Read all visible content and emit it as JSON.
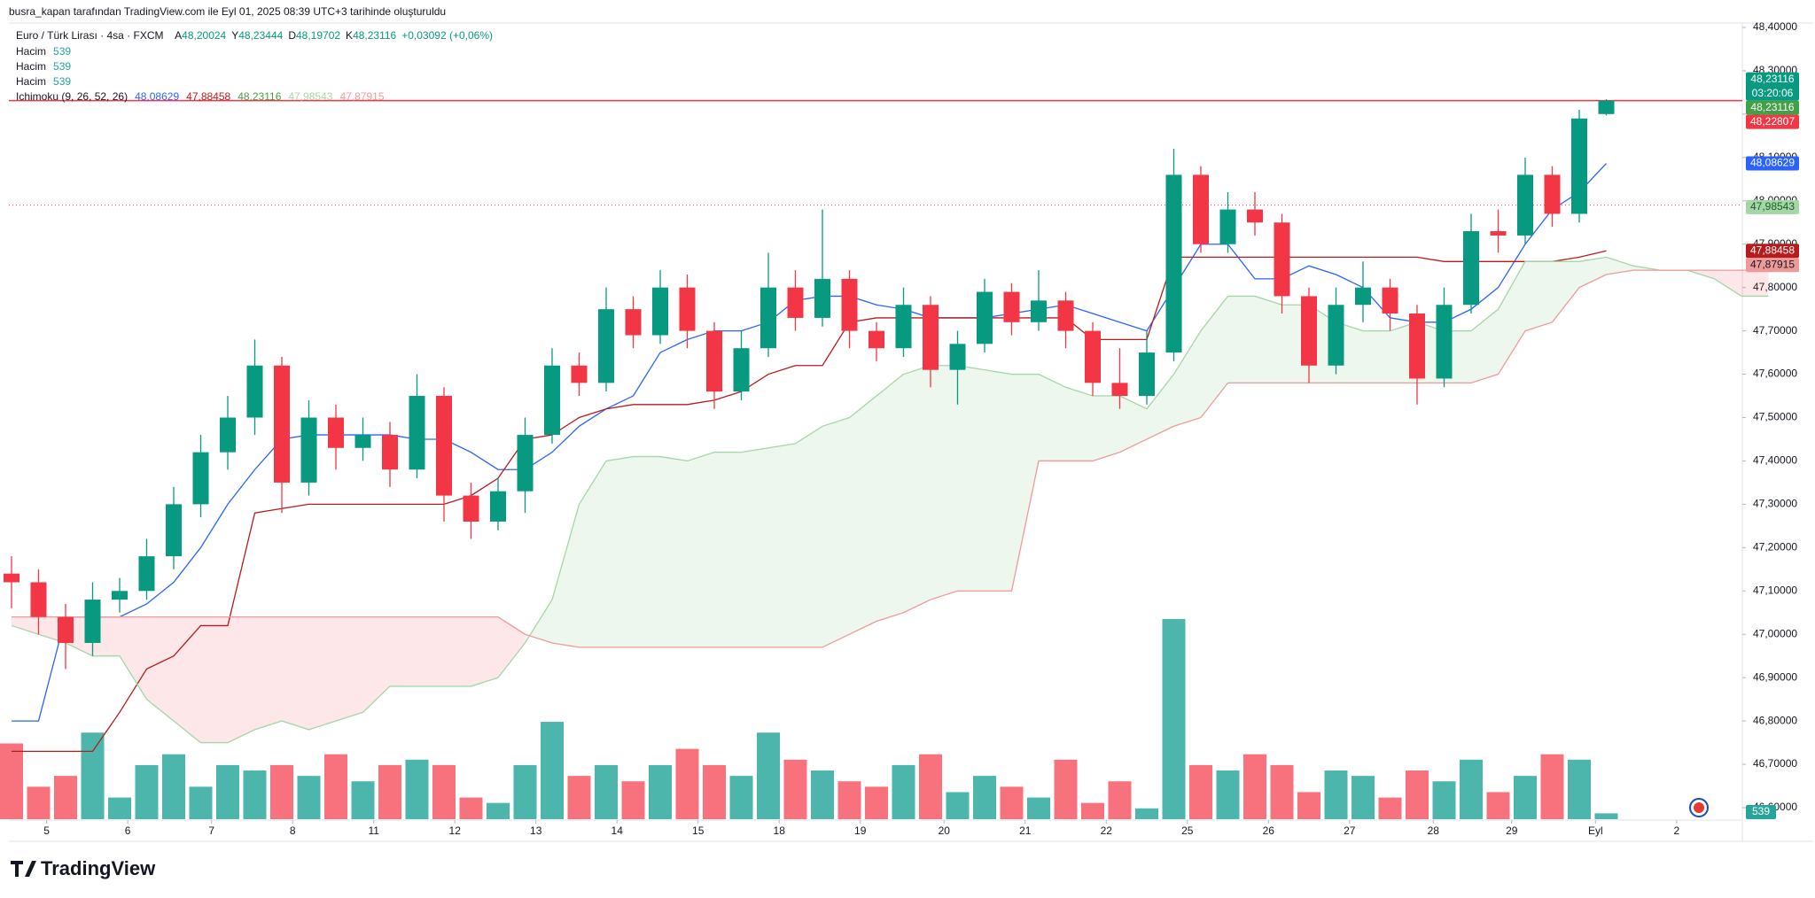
{
  "header": {
    "caption": "busra_kapan tarafından TradingView.com ile Eyl 01, 2025 08:39 UTC+3 tarihinde oluşturuldu",
    "brand": "TradingView"
  },
  "legend": {
    "symbol": "Euro / Türk Lirası · 4sa · FXCM",
    "ohlc": [
      {
        "label": "A",
        "value": "48,20024"
      },
      {
        "label": "Y",
        "value": "48,23444"
      },
      {
        "label": "D",
        "value": "48,19702"
      },
      {
        "label": "K",
        "value": "48,23116"
      }
    ],
    "change": "+0,03092 (+0,06%)",
    "volume_rows": [
      {
        "label": "Hacim",
        "value": "539"
      },
      {
        "label": "Hacim",
        "value": "539"
      },
      {
        "label": "Hacim",
        "value": "539"
      }
    ],
    "ichimoku": {
      "name": "Ichimoku (9, 26, 52, 26)",
      "values": [
        {
          "text": "48,08629",
          "color": "#2962ff"
        },
        {
          "text": "47,88458",
          "color": "#b71c1c"
        },
        {
          "text": "48,23116",
          "color": "#43a047"
        },
        {
          "text": "47,98543",
          "color": "#a5d6a7"
        },
        {
          "text": "47,87915",
          "color": "#ef9a9a"
        }
      ]
    }
  },
  "price_labels": [
    {
      "text": "48,23116",
      "sub": "03:20:06",
      "value": 48.23116,
      "color": "#089981",
      "text_color": "#ffffff"
    },
    {
      "text": "48,23116",
      "value": 48.23116,
      "color": "#43a047",
      "text_color": "#ffffff"
    },
    {
      "text": "48,22807",
      "value": 48.22807,
      "color": "#f23645",
      "text_color": "#ffffff"
    },
    {
      "text": "48,08629",
      "value": 48.08629,
      "color": "#2962ff",
      "text_color": "#ffffff"
    },
    {
      "text": "47,98543",
      "value": 47.98543,
      "color": "#a5d6a7",
      "text_color": "#1b5e20"
    },
    {
      "text": "47,88458",
      "value": 47.88458,
      "color": "#b71c1c",
      "text_color": "#ffffff"
    },
    {
      "text": "47,87915",
      "value": 47.87915,
      "color": "#ef9a9a",
      "text_color": "#131722"
    }
  ],
  "volume_badge": {
    "text": "539",
    "color": "#26a69a"
  },
  "chart_data": {
    "type": "candlestick",
    "up_color": "#089981",
    "down_color": "#f23645",
    "volume_up_color": "#4db6ac",
    "volume_down_color": "#f7727c",
    "ylim": [
      46.6,
      48.4
    ],
    "yticks": [
      {
        "value": 46.6,
        "label": "46,60000"
      },
      {
        "value": 46.7,
        "label": "46,70000"
      },
      {
        "value": 46.8,
        "label": "46,80000"
      },
      {
        "value": 46.9,
        "label": "46,90000"
      },
      {
        "value": 47.0,
        "label": "47,00000"
      },
      {
        "value": 47.1,
        "label": "47,10000"
      },
      {
        "value": 47.2,
        "label": "47,20000"
      },
      {
        "value": 47.3,
        "label": "47,30000"
      },
      {
        "value": 47.4,
        "label": "47,40000"
      },
      {
        "value": 47.5,
        "label": "47,50000"
      },
      {
        "value": 47.6,
        "label": "47,60000"
      },
      {
        "value": 47.7,
        "label": "47,70000"
      },
      {
        "value": 47.8,
        "label": "47,80000"
      },
      {
        "value": 47.9,
        "label": "47,90000"
      },
      {
        "value": 48.0,
        "label": "48,00000"
      },
      {
        "value": 48.1,
        "label": "48,10000"
      },
      {
        "value": 48.2,
        "label": "48,20000"
      },
      {
        "value": 48.3,
        "label": "48,30000"
      },
      {
        "value": 48.4,
        "label": "48,40000"
      }
    ],
    "xticks": [
      {
        "value": 1.3,
        "label": "5"
      },
      {
        "value": 4.3,
        "label": "6"
      },
      {
        "value": 7.4,
        "label": "7"
      },
      {
        "value": 10.4,
        "label": "8"
      },
      {
        "value": 13.4,
        "label": "11"
      },
      {
        "value": 16.4,
        "label": "12"
      },
      {
        "value": 19.4,
        "label": "13"
      },
      {
        "value": 22.4,
        "label": "14"
      },
      {
        "value": 25.4,
        "label": "15"
      },
      {
        "value": 28.4,
        "label": "18"
      },
      {
        "value": 31.4,
        "label": "19"
      },
      {
        "value": 34.5,
        "label": "20"
      },
      {
        "value": 37.5,
        "label": "21"
      },
      {
        "value": 40.5,
        "label": "22"
      },
      {
        "value": 43.5,
        "label": "25"
      },
      {
        "value": 46.5,
        "label": "26"
      },
      {
        "value": 49.5,
        "label": "27"
      },
      {
        "value": 52.6,
        "label": "28"
      },
      {
        "value": 55.5,
        "label": "29"
      },
      {
        "value": 58.6,
        "label": "Eyl"
      },
      {
        "value": 61.6,
        "label": "2"
      }
    ],
    "ohlc": [
      [
        47.14,
        47.18,
        47.06,
        47.12
      ],
      [
        47.12,
        47.15,
        47.0,
        47.04
      ],
      [
        47.04,
        47.07,
        46.92,
        46.98
      ],
      [
        46.98,
        47.12,
        46.95,
        47.08
      ],
      [
        47.08,
        47.13,
        47.05,
        47.1
      ],
      [
        47.1,
        47.22,
        47.08,
        47.18
      ],
      [
        47.18,
        47.34,
        47.15,
        47.3
      ],
      [
        47.3,
        47.46,
        47.27,
        47.42
      ],
      [
        47.42,
        47.55,
        47.38,
        47.5
      ],
      [
        47.5,
        47.68,
        47.46,
        47.62
      ],
      [
        47.62,
        47.64,
        47.28,
        47.35
      ],
      [
        47.35,
        47.54,
        47.32,
        47.5
      ],
      [
        47.5,
        47.53,
        47.38,
        47.43
      ],
      [
        47.43,
        47.5,
        47.4,
        47.46
      ],
      [
        47.46,
        47.49,
        47.34,
        47.38
      ],
      [
        47.38,
        47.6,
        47.36,
        47.55
      ],
      [
        47.55,
        47.57,
        47.26,
        47.32
      ],
      [
        47.32,
        47.35,
        47.22,
        47.26
      ],
      [
        47.26,
        47.36,
        47.24,
        47.33
      ],
      [
        47.33,
        47.5,
        47.28,
        47.46
      ],
      [
        47.46,
        47.66,
        47.44,
        47.62
      ],
      [
        47.62,
        47.65,
        47.55,
        47.58
      ],
      [
        47.58,
        47.8,
        47.56,
        47.75
      ],
      [
        47.75,
        47.78,
        47.66,
        47.69
      ],
      [
        47.69,
        47.84,
        47.67,
        47.8
      ],
      [
        47.8,
        47.83,
        47.66,
        47.7
      ],
      [
        47.7,
        47.72,
        47.52,
        47.56
      ],
      [
        47.56,
        47.7,
        47.54,
        47.66
      ],
      [
        47.66,
        47.88,
        47.64,
        47.8
      ],
      [
        47.8,
        47.84,
        47.7,
        47.73
      ],
      [
        47.73,
        47.98,
        47.71,
        47.82
      ],
      [
        47.82,
        47.84,
        47.66,
        47.7
      ],
      [
        47.7,
        47.72,
        47.63,
        47.66
      ],
      [
        47.66,
        47.8,
        47.64,
        47.76
      ],
      [
        47.76,
        47.78,
        47.57,
        47.61
      ],
      [
        47.61,
        47.7,
        47.53,
        47.67
      ],
      [
        47.67,
        47.82,
        47.65,
        47.79
      ],
      [
        47.79,
        47.81,
        47.69,
        47.72
      ],
      [
        47.72,
        47.84,
        47.7,
        47.77
      ],
      [
        47.77,
        47.79,
        47.66,
        47.7
      ],
      [
        47.7,
        47.72,
        47.55,
        47.58
      ],
      [
        47.58,
        47.66,
        47.52,
        47.55
      ],
      [
        47.55,
        47.7,
        47.53,
        47.65
      ],
      [
        47.65,
        48.12,
        47.63,
        48.06
      ],
      [
        48.06,
        48.08,
        47.88,
        47.9
      ],
      [
        47.9,
        48.02,
        47.88,
        47.98
      ],
      [
        47.98,
        48.02,
        47.92,
        47.95
      ],
      [
        47.95,
        47.97,
        47.74,
        47.78
      ],
      [
        47.78,
        47.8,
        47.58,
        47.62
      ],
      [
        47.62,
        47.8,
        47.6,
        47.76
      ],
      [
        47.76,
        47.86,
        47.72,
        47.8
      ],
      [
        47.8,
        47.82,
        47.7,
        47.74
      ],
      [
        47.74,
        47.76,
        47.53,
        47.59
      ],
      [
        47.59,
        47.8,
        47.57,
        47.76
      ],
      [
        47.76,
        47.97,
        47.74,
        47.93
      ],
      [
        47.93,
        47.98,
        47.88,
        47.92
      ],
      [
        47.92,
        48.1,
        47.9,
        48.06
      ],
      [
        48.06,
        48.08,
        47.94,
        47.97
      ],
      [
        47.97,
        48.21,
        47.95,
        48.19
      ],
      [
        48.20024,
        48.23444,
        48.19702,
        48.23116
      ]
    ],
    "volume": [
      7000,
      3000,
      4000,
      8000,
      2000,
      5000,
      6000,
      3000,
      5000,
      4500,
      5000,
      4000,
      6000,
      3500,
      5000,
      5500,
      5000,
      2000,
      1500,
      5000,
      9000,
      4000,
      5000,
      3500,
      5000,
      6500,
      5000,
      4000,
      8000,
      5500,
      4500,
      3500,
      3000,
      5000,
      6000,
      2500,
      4000,
      3000,
      2000,
      5500,
      1500,
      3500,
      1000,
      18500,
      5000,
      4500,
      6000,
      5000,
      2500,
      4500,
      4000,
      2000,
      4500,
      3500,
      5500,
      2500,
      4000,
      6000,
      5500,
      539
    ],
    "series": [
      {
        "name": "Tenkan",
        "color": "#2962ff",
        "values": [
          46.8,
          46.8,
          47.04,
          47.04,
          47.04,
          47.07,
          47.12,
          47.2,
          47.3,
          47.38,
          47.45,
          47.46,
          47.46,
          47.46,
          47.46,
          47.45,
          47.45,
          47.42,
          47.38,
          47.38,
          47.42,
          47.48,
          47.52,
          47.55,
          47.65,
          47.68,
          47.7,
          47.7,
          47.72,
          47.77,
          47.78,
          47.78,
          47.76,
          47.75,
          47.73,
          47.73,
          47.73,
          47.74,
          47.75,
          47.76,
          47.74,
          47.72,
          47.7,
          47.8,
          47.9,
          47.9,
          47.82,
          47.82,
          47.85,
          47.83,
          47.8,
          47.73,
          47.72,
          47.72,
          47.75,
          47.8,
          47.9,
          47.98,
          48.02,
          48.08629
        ]
      },
      {
        "name": "Kijun",
        "color": "#b71c1c",
        "values": [
          46.73,
          46.73,
          46.73,
          46.73,
          46.82,
          46.92,
          46.95,
          47.02,
          47.02,
          47.28,
          47.29,
          47.3,
          47.3,
          47.3,
          47.3,
          47.3,
          47.3,
          47.32,
          47.36,
          47.45,
          47.46,
          47.5,
          47.52,
          47.53,
          47.53,
          47.53,
          47.54,
          47.56,
          47.6,
          47.62,
          47.62,
          47.72,
          47.73,
          47.73,
          47.73,
          47.73,
          47.73,
          47.73,
          47.73,
          47.73,
          47.68,
          47.68,
          47.68,
          47.87,
          47.87,
          47.87,
          47.87,
          47.87,
          47.87,
          47.87,
          47.87,
          47.87,
          47.87,
          47.86,
          47.86,
          47.86,
          47.86,
          47.86,
          47.87,
          47.88458
        ]
      },
      {
        "name": "Span A",
        "color": "#a5d6a7",
        "values": [
          47.02,
          47.0,
          46.98,
          46.95,
          46.95,
          46.85,
          46.8,
          46.75,
          46.75,
          46.78,
          46.8,
          46.78,
          46.8,
          46.82,
          46.88,
          46.88,
          46.88,
          46.88,
          46.9,
          46.98,
          47.08,
          47.3,
          47.4,
          47.41,
          47.41,
          47.4,
          47.42,
          47.42,
          47.43,
          47.44,
          47.48,
          47.5,
          47.55,
          47.6,
          47.62,
          47.62,
          47.61,
          47.6,
          47.6,
          47.57,
          47.55,
          47.55,
          47.52,
          47.6,
          47.7,
          47.78,
          47.78,
          47.76,
          47.76,
          47.72,
          47.7,
          47.7,
          47.72,
          47.7,
          47.7,
          47.75,
          47.86,
          47.86,
          47.86,
          47.87,
          47.85,
          47.84,
          47.84,
          47.82,
          47.78,
          47.78
        ]
      },
      {
        "name": "Span B",
        "color": "#ef9a9a",
        "values": [
          47.04,
          47.04,
          47.04,
          47.04,
          47.04,
          47.04,
          47.04,
          47.04,
          47.04,
          47.04,
          47.04,
          47.04,
          47.04,
          47.04,
          47.04,
          47.04,
          47.04,
          47.04,
          47.04,
          47.0,
          46.98,
          46.97,
          46.97,
          46.97,
          46.97,
          46.97,
          46.97,
          46.97,
          46.97,
          46.97,
          46.97,
          47.0,
          47.03,
          47.05,
          47.08,
          47.1,
          47.1,
          47.1,
          47.4,
          47.4,
          47.4,
          47.42,
          47.45,
          47.48,
          47.5,
          47.58,
          47.58,
          47.58,
          47.58,
          47.58,
          47.58,
          47.58,
          47.58,
          47.58,
          47.58,
          47.6,
          47.7,
          47.72,
          47.8,
          47.83,
          47.84,
          47.84,
          47.84,
          47.84,
          47.84,
          47.84
        ]
      }
    ],
    "price_lines": [
      {
        "value": 48.23116,
        "color": "#f23645",
        "dashed": false
      },
      {
        "value": 47.99,
        "color": "#f23645",
        "dashed": true
      }
    ]
  }
}
